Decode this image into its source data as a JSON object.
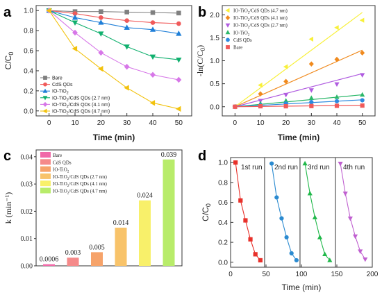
{
  "colors": {
    "Bare": "#808080",
    "CdS QDs": "#f05a5a",
    "IO-TiO2": "#1f7fd8",
    "IO-TiO2/CdS QDs (2.7 nm)": "#10b06e",
    "IO-TiO2/CdS QDs (4.1 nm)": "#d777e8",
    "IO-TiO2/CdS QDs (4.7 nm)": "#f2c20d",
    "b_4.7": "#f8f03a",
    "b_4.1": "#f08a1e",
    "b_2.7": "#b05ce0",
    "b_IO": "#2cb86a",
    "b_CdS": "#2d8ae0",
    "b_Bare": "#f05a5a",
    "c_bars": [
      "#f06aa8",
      "#f58a8a",
      "#f6a36a",
      "#f8c36a",
      "#f8f06a",
      "#b8ec6a"
    ],
    "d_runs": [
      "#e8302a",
      "#2a8ad0",
      "#20b84a",
      "#c060d0"
    ]
  },
  "chart_data": [
    {
      "panel": "a",
      "type": "line",
      "xlabel": "Time (min)",
      "ylabel": "C/C0",
      "xlim": [
        -5,
        55
      ],
      "ylim": [
        -0.05,
        1.05
      ],
      "xticks": [
        "0",
        "10",
        "20",
        "30",
        "40",
        "50"
      ],
      "yticks": [
        "0.0",
        "0.2",
        "0.4",
        "0.6",
        "0.8",
        "1.0"
      ],
      "legend_position": "bottom-left",
      "x": [
        0,
        10,
        20,
        30,
        40,
        50
      ],
      "series": [
        {
          "name": "Bare",
          "marker": "square",
          "values": [
            1.0,
            0.99,
            0.99,
            0.985,
            0.98,
            0.975
          ]
        },
        {
          "name": "CdS QDs",
          "marker": "circle",
          "values": [
            1.0,
            0.97,
            0.93,
            0.9,
            0.88,
            0.87
          ]
        },
        {
          "name": "IO-TiO2",
          "marker": "triangle-up",
          "values": [
            1.0,
            0.93,
            0.88,
            0.83,
            0.81,
            0.77
          ]
        },
        {
          "name": "IO-TiO2/CdS QDs (2.7 nm)",
          "marker": "triangle-down",
          "values": [
            1.0,
            0.88,
            0.77,
            0.64,
            0.54,
            0.51
          ]
        },
        {
          "name": "IO-TiO2/CdS QDs (4.1 nm)",
          "marker": "diamond",
          "values": [
            1.0,
            0.78,
            0.58,
            0.44,
            0.36,
            0.31
          ]
        },
        {
          "name": "IO-TiO2/CdS QDs (4.7 nm)",
          "marker": "triangle-left",
          "values": [
            1.0,
            0.62,
            0.42,
            0.23,
            0.08,
            0.02
          ]
        }
      ]
    },
    {
      "panel": "b",
      "type": "scatter",
      "xlabel": "Time (min)",
      "ylabel": "-ln(C/C0)",
      "xlim": [
        -5,
        55
      ],
      "ylim": [
        -0.2,
        2.2
      ],
      "xticks": [
        "0",
        "10",
        "20",
        "30",
        "40",
        "50"
      ],
      "yticks": [
        "0.0",
        "0.5",
        "1.0",
        "1.5",
        "2.0"
      ],
      "legend_position": "top-left",
      "x": [
        0,
        10,
        20,
        30,
        40,
        50
      ],
      "series": [
        {
          "name": "IO-TiO2/CdS QDs (4.7 nm)",
          "marker": "triangle-left",
          "values": [
            0.0,
            0.47,
            0.87,
            1.47,
            1.72,
            1.88
          ],
          "fit": [
            0.0,
            2.05
          ]
        },
        {
          "name": "IO-TiO2/CdS QDs (4.1 nm)",
          "marker": "diamond",
          "values": [
            0.0,
            0.28,
            0.55,
            0.93,
            1.03,
            1.17
          ],
          "fit": [
            0.0,
            1.23
          ]
        },
        {
          "name": "IO-TiO2/CdS QDs (2.7 nm)",
          "marker": "triangle-down",
          "values": [
            0.0,
            0.13,
            0.26,
            0.36,
            0.49,
            0.69
          ],
          "fit": [
            0.0,
            0.72
          ]
        },
        {
          "name": "IO-TiO2",
          "marker": "triangle-up",
          "values": [
            0.0,
            0.07,
            0.13,
            0.19,
            0.21,
            0.26
          ],
          "fit": [
            0.0,
            0.26
          ]
        },
        {
          "name": "CdS QDs",
          "marker": "circle",
          "values": [
            0.0,
            0.03,
            0.07,
            0.1,
            0.12,
            0.14
          ],
          "fit": [
            0.0,
            0.15
          ]
        },
        {
          "name": "Bare",
          "marker": "square",
          "values": [
            0.0,
            0.01,
            0.01,
            0.015,
            0.02,
            0.025
          ],
          "fit": [
            0.0,
            0.03
          ]
        }
      ]
    },
    {
      "panel": "c",
      "type": "bar",
      "ylabel": "k (min⁻¹)",
      "ylim": [
        0,
        0.0425
      ],
      "yticks": [
        "0.00",
        "0.01",
        "0.02",
        "0.03",
        "0.04"
      ],
      "legend_position": "top-left",
      "categories": [
        "Bare",
        "CdS QDs",
        "IO-TiO2",
        "IO-TiO2/CdS QDs (2.7 nm)",
        "IO-TiO2/CdS QDs (4.1 nm)",
        "IO-TiO2/CdS QDs (4.7 nm)"
      ],
      "values": [
        0.0006,
        0.003,
        0.005,
        0.014,
        0.024,
        0.039
      ],
      "labels": [
        "0.0006",
        "0.003",
        "0.005",
        "0.014",
        "0.024",
        "0.039"
      ]
    },
    {
      "panel": "d",
      "type": "line",
      "xlabel": "Time (min)",
      "ylabel": "C/C0",
      "xlim": [
        0,
        200
      ],
      "ylim": [
        -0.05,
        1.05
      ],
      "xticks": [
        "0",
        "50",
        "100",
        "150",
        "200"
      ],
      "yticks": [
        "0.0",
        "0.2",
        "0.4",
        "0.6",
        "0.8",
        "1.0"
      ],
      "run_labels": [
        "1st run",
        "2nd run",
        "3rd run",
        "4th run"
      ],
      "run_separators": [
        48,
        98,
        148
      ],
      "runs": [
        {
          "name": "1st run",
          "marker": "square",
          "x": [
            7,
            14,
            21,
            28,
            35,
            42
          ],
          "values": [
            1.0,
            0.62,
            0.42,
            0.23,
            0.08,
            0.02
          ]
        },
        {
          "name": "2nd run",
          "marker": "circle",
          "x": [
            58,
            65,
            72,
            79,
            86,
            93
          ],
          "values": [
            0.99,
            0.65,
            0.44,
            0.25,
            0.09,
            0.02
          ]
        },
        {
          "name": "3rd run",
          "marker": "triangle-up",
          "x": [
            105,
            112,
            119,
            126,
            133,
            140
          ],
          "values": [
            0.99,
            0.69,
            0.45,
            0.25,
            0.08,
            0.02
          ]
        },
        {
          "name": "4th run",
          "marker": "triangle-down",
          "x": [
            155,
            162,
            169,
            176,
            183,
            190
          ],
          "values": [
            0.99,
            0.69,
            0.44,
            0.26,
            0.11,
            0.03
          ]
        }
      ]
    }
  ]
}
